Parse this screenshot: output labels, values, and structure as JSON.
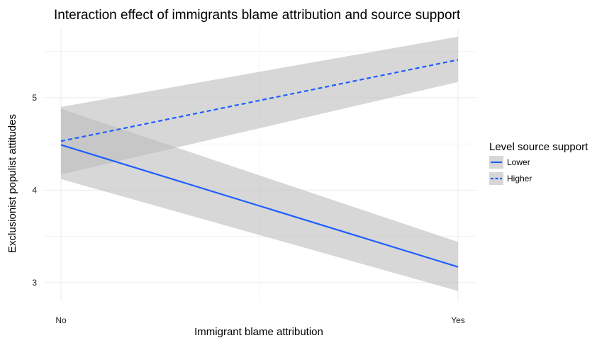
{
  "chart_data": {
    "type": "line",
    "title": "Interaction effect of immigrants blame attribution and source support",
    "xlabel": "Immigrant blame attribution",
    "ylabel": "Exclusionist populist attitudes",
    "categories": [
      "No",
      "Yes"
    ],
    "ylim": [
      2.8,
      5.75
    ],
    "yticks": [
      3,
      4,
      5
    ],
    "grid": true,
    "legend": {
      "title": "Level source support",
      "placement": "right"
    },
    "series": [
      {
        "name": "Lower",
        "values": [
          4.49,
          3.17
        ],
        "ci_lower": [
          4.12,
          2.91
        ],
        "ci_upper": [
          4.88,
          3.44
        ],
        "line_style": "solid",
        "color": "#1f5fff"
      },
      {
        "name": "Higher",
        "values": [
          4.53,
          5.41
        ],
        "ci_lower": [
          4.17,
          5.17
        ],
        "ci_upper": [
          4.9,
          5.66
        ],
        "line_style": "dashed",
        "color": "#1f5fff"
      }
    ],
    "band_color": "#bdbdbd",
    "grid_color": "#ebebeb"
  }
}
